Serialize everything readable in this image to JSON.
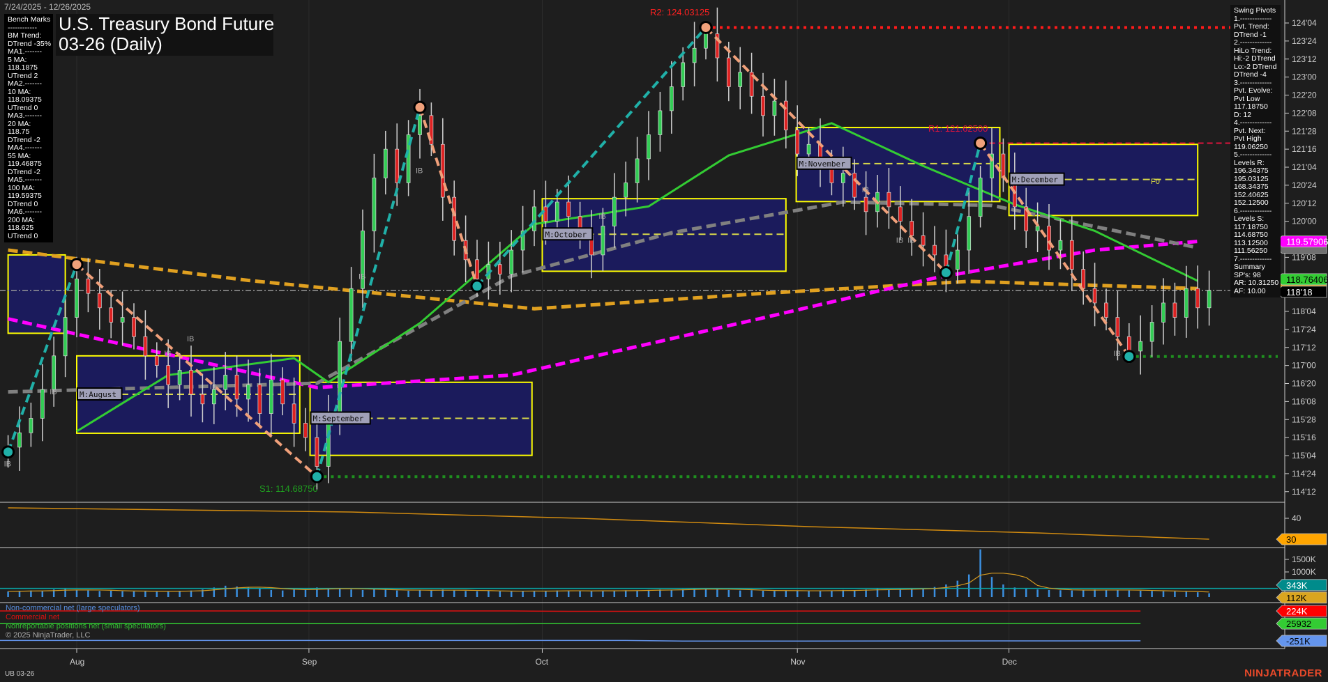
{
  "header": {
    "date_range": "7/24/2025 - 12/26/2025",
    "title_line1": "U.S. Treasury Bond Futures",
    "title_line2": "03-26 (Daily)"
  },
  "benchmarks": {
    "lines": [
      "Bench Marks",
      "------------",
      "BM Trend:",
      "DTrend -35%",
      "MA1.-------",
      "5 MA:",
      "118.1875",
      "UTrend 2",
      "MA2.-------",
      "10 MA:",
      "118.09375",
      "UTrend 0",
      "MA3.-------",
      "20 MA:",
      "118.75",
      "DTrend -2",
      "MA4.-------",
      "55 MA:",
      "119.46875",
      "DTrend -2",
      "MA5.-------",
      "100 MA:",
      "119.59375",
      "DTrend 0",
      "MA6.-------",
      "200 MA:",
      "118.625",
      "UTrend 0"
    ]
  },
  "swing_pivots": {
    "lines": [
      "Swing Pivots",
      "1.-------------",
      "Pvt. Trend:",
      "DTrend -1",
      "2.-------------",
      "HiLo Trend:",
      "Hi:-2 DTrend",
      "Lo:-2 DTrend",
      "DTrend -4",
      "3.-------------",
      "Pvt. Evolve:",
      "Pvt Low",
      "117.18750",
      "D: 12",
      "4.-------------",
      "Pvt. Next:",
      "Pvt High",
      "119.06250",
      "5.-------------",
      "Levels R:",
      "196.34375",
      "195.03125",
      "168.34375",
      "152.40625",
      "152.12500",
      "6.-------------",
      "Levels S:",
      "117.18750",
      "114.68750",
      "113.12500",
      "111.56250",
      "7.-------------",
      "Summary",
      "SP's: 98",
      "AR: 10.31250",
      "AF: 10.00"
    ]
  },
  "chart_data": {
    "type": "candlestick",
    "closes": [
      115.3,
      115.6,
      115.9,
      116.5,
      117.2,
      118.0,
      118.8,
      118.5,
      118.2,
      117.9,
      118.0,
      117.6,
      117.2,
      117.0,
      116.6,
      116.9,
      116.4,
      116.2,
      116.5,
      116.8,
      116.3,
      116.6,
      116.0,
      116.7,
      116.2,
      115.8,
      115.5,
      114.9,
      116.0,
      117.5,
      118.6,
      119.8,
      120.9,
      121.5,
      120.8,
      121.8,
      122.2,
      121.6,
      120.5,
      119.6,
      119.2,
      118.8,
      119.1,
      118.9,
      119.4,
      119.8,
      120.3,
      120.0,
      120.4,
      120.1,
      119.7,
      119.3,
      119.9,
      120.5,
      120.8,
      121.3,
      121.8,
      122.3,
      122.8,
      123.3,
      123.6,
      123.9,
      123.4,
      122.8,
      123.1,
      122.6,
      122.2,
      122.5,
      121.9,
      121.4,
      121.6,
      121.2,
      120.8,
      121.0,
      120.5,
      120.2,
      120.6,
      120.3,
      120.0,
      119.7,
      119.5,
      119.3,
      119.0,
      119.4,
      120.1,
      120.9,
      121.4,
      120.9,
      120.3,
      119.8,
      119.9,
      119.4,
      119.6,
      119.0,
      118.6,
      118.3,
      118.0,
      117.6,
      117.3,
      117.5,
      117.9,
      118.3,
      118.0,
      118.6,
      118.2,
      118.56
    ],
    "volume_k": [
      220,
      240,
      260,
      250,
      300,
      320,
      280,
      260,
      240,
      250,
      230,
      220,
      240,
      210,
      230,
      250,
      260,
      300,
      380,
      450,
      420,
      390,
      330,
      280,
      260,
      300,
      310,
      380,
      350,
      330,
      300,
      280,
      310,
      290,
      260,
      250,
      270,
      280,
      300,
      260,
      240,
      230,
      250,
      240,
      220,
      230,
      250,
      240,
      260,
      250,
      240,
      230,
      250,
      260,
      270,
      260,
      280,
      300,
      290,
      310,
      330,
      350,
      300,
      280,
      260,
      270,
      250,
      240,
      260,
      250,
      240,
      250,
      260,
      280,
      270,
      300,
      320,
      300,
      310,
      330,
      350,
      400,
      500,
      650,
      900,
      1900,
      800,
      500,
      380,
      320,
      300,
      280,
      270,
      260,
      280,
      300,
      290,
      270,
      260,
      250,
      240,
      230,
      220,
      210,
      190,
      150
    ],
    "moving_averages": [
      {
        "name": "200 MA",
        "color": "#e0a020",
        "style": "dashed",
        "knots": [
          [
            0,
            119.4
          ],
          [
            21,
            118.77
          ],
          [
            46,
            118.18
          ],
          [
            66,
            118.5
          ],
          [
            84,
            118.75
          ],
          [
            104,
            118.6
          ]
        ]
      },
      {
        "name": "100 MA",
        "color": "#ff00ff",
        "style": "dashed",
        "knots": [
          [
            0,
            117.97
          ],
          [
            27,
            116.54
          ],
          [
            44,
            116.8
          ],
          [
            66,
            117.99
          ],
          [
            81,
            118.82
          ],
          [
            95,
            119.4
          ],
          [
            104,
            119.58
          ]
        ]
      },
      {
        "name": "55 MA",
        "color": "#808080",
        "style": "dashed",
        "knots": [
          [
            0,
            116.45
          ],
          [
            27,
            116.63
          ],
          [
            44,
            118.86
          ],
          [
            58,
            119.76
          ],
          [
            73,
            120.4
          ],
          [
            86,
            120.33
          ],
          [
            104,
            119.45
          ]
        ]
      },
      {
        "name": "20 MA",
        "color": "#33cc33",
        "style": "solid",
        "knots": [
          [
            6,
            115.63
          ],
          [
            14,
            116.8
          ],
          [
            25,
            117.15
          ],
          [
            28,
            116.65
          ],
          [
            36,
            117.88
          ],
          [
            46,
            119.94
          ],
          [
            56,
            120.31
          ],
          [
            63,
            121.37
          ],
          [
            72,
            122.04
          ],
          [
            80,
            121.15
          ],
          [
            88,
            120.35
          ],
          [
            95,
            119.8
          ],
          [
            104,
            118.76
          ]
        ]
      }
    ],
    "pivots": [
      {
        "bar": 0,
        "price": 115.2,
        "type": "low"
      },
      {
        "bar": 6,
        "price": 119.1,
        "type": "high"
      },
      {
        "bar": 27,
        "price": 114.6875,
        "type": "low"
      },
      {
        "bar": 36,
        "price": 122.37,
        "type": "high"
      },
      {
        "bar": 41,
        "price": 118.65,
        "type": "low"
      },
      {
        "bar": 61,
        "price": 124.03125,
        "type": "high"
      },
      {
        "bar": 82,
        "price": 118.93,
        "type": "low"
      },
      {
        "bar": 85,
        "price": 121.625,
        "type": "high"
      },
      {
        "bar": 98,
        "price": 117.1875,
        "type": "low"
      }
    ],
    "value_areas": [
      {
        "label": "",
        "start": 0,
        "end": 5,
        "high": 119.3,
        "low": 117.67,
        "mid": null
      },
      {
        "label": "M:August",
        "start": 6,
        "end": 25.5,
        "high": 117.2,
        "low": 115.59,
        "mid": 116.4
      },
      {
        "label": "M:September",
        "start": 26.4,
        "end": 45.8,
        "high": 116.65,
        "low": 115.13,
        "mid": 115.9
      },
      {
        "label": "M:October",
        "start": 46.7,
        "end": 68,
        "high": 120.47,
        "low": 118.96,
        "mid": 119.73
      },
      {
        "label": "M:November",
        "start": 68.9,
        "end": 86.7,
        "high": 121.95,
        "low": 120.41,
        "mid": 121.2
      },
      {
        "label": "M:December",
        "start": 87.5,
        "end": 104,
        "high": 121.6,
        "low": 120.12,
        "mid": 120.87
      }
    ],
    "levels": [
      {
        "label": "R2: 124.03125",
        "price": 124.03125,
        "from": 61,
        "color": "#ff1a1a",
        "style": "dotted"
      },
      {
        "label": "R1: 121.62500",
        "price": 121.625,
        "from": 85,
        "color": "#dc143c",
        "style": "dashed"
      },
      {
        "label": "S1: 114.68750",
        "price": 114.6875,
        "from": 27,
        "color": "#1f8f1f",
        "style": "dotted"
      },
      {
        "label": "",
        "price": 117.1875,
        "from": 98,
        "color": "#1f8f1f",
        "style": "dotted"
      }
    ],
    "last_price": 118.5625,
    "f0_label": "F0",
    "ib_labels": [
      {
        "bar": 0,
        "price": 114.9
      },
      {
        "bar": 4,
        "price": 116.4
      },
      {
        "bar": 16,
        "price": 117.5
      },
      {
        "bar": 14,
        "price": 117.2
      },
      {
        "bar": 18,
        "price": 116.5
      },
      {
        "bar": 31,
        "price": 118.8
      },
      {
        "bar": 36,
        "price": 121.0
      },
      {
        "bar": 52,
        "price": 120.05
      },
      {
        "bar": 75,
        "price": 120.6
      },
      {
        "bar": 78,
        "price": 119.55
      },
      {
        "bar": 79,
        "price": 119.55
      },
      {
        "bar": 97,
        "price": 117.2
      }
    ],
    "ib_text": "IB",
    "price_axis_ticks": [
      "124'04",
      "123'24",
      "123'12",
      "123'00",
      "122'20",
      "122'08",
      "121'28",
      "121'16",
      "121'04",
      "120'24",
      "120'12",
      "120'00",
      "119'08",
      "118'04",
      "117'24",
      "117'12",
      "117'00",
      "116'20",
      "116'08",
      "115'28",
      "115'16",
      "115'04",
      "114'24",
      "114'12"
    ],
    "price_tags": [
      {
        "text": "119.57906",
        "price": 119.579,
        "bg": "#ff00ff",
        "fg": "#ffffff"
      },
      {
        "text": "",
        "price": 119.45,
        "bg": "#707070",
        "fg": "#ffffff"
      },
      {
        "text": "118.76406",
        "price": 118.764,
        "bg": "#33cc33",
        "fg": "#000000"
      },
      {
        "text": "",
        "price": 118.65,
        "bg": "#e0a020",
        "fg": "#000000"
      },
      {
        "text": "118'18",
        "price": 118.5625,
        "bg": "#000000",
        "fg": "#ffffff"
      }
    ],
    "x_axis_labels": [
      {
        "label": "Aug",
        "bar": 6
      },
      {
        "label": "Sep",
        "bar": 26.3
      },
      {
        "label": "Oct",
        "bar": 46.7
      },
      {
        "label": "Nov",
        "bar": 69
      },
      {
        "label": "Dec",
        "bar": 87.5
      }
    ],
    "oscillator": {
      "color": "#d08a10",
      "ticks": [
        40
      ],
      "tag": "30",
      "knots": [
        [
          0,
          45
        ],
        [
          30,
          43
        ],
        [
          50,
          40
        ],
        [
          70,
          36
        ],
        [
          90,
          33
        ],
        [
          105,
          30
        ]
      ]
    },
    "volume": {
      "ticks": [
        "1500K",
        "1000K"
      ],
      "tag_values": [
        {
          "text": "343K",
          "bg": "#008b8b",
          "fg": "#fff",
          "value": 343
        },
        {
          "text": "112K",
          "bg": "#daa520",
          "fg": "#000",
          "value": 112
        }
      ],
      "bar_color": "#3b8fe0",
      "oi_color": "#0aa5a5",
      "avg_color": "#d69a20"
    },
    "cot": {
      "series": [
        {
          "name": "Commercial net",
          "color": "#e01010",
          "tag": "224K",
          "knots": [
            [
              0,
              226
            ],
            [
              50,
              226
            ],
            [
              55,
              220
            ],
            [
              70,
              221
            ],
            [
              75,
              225
            ],
            [
              105,
              224
            ]
          ]
        },
        {
          "name": "Nonreportable positions net (small speculators)",
          "color": "#33cc33",
          "tag": "25932",
          "knots": [
            [
              0,
              24
            ],
            [
              50,
              22
            ],
            [
              55,
              27
            ],
            [
              105,
              26
            ]
          ]
        },
        {
          "name": "Non-commercial net (large speculators)",
          "color": "#6495ed",
          "tag": "-251K",
          "knots": [
            [
              0,
              -245
            ],
            [
              60,
              -245
            ],
            [
              65,
              -255
            ],
            [
              105,
              -251
            ]
          ]
        }
      ]
    }
  },
  "footer": {
    "symbol": "UB 03-26",
    "copyright": "© 2025 NinjaTrader, LLC",
    "logo": "NINJATRADER"
  }
}
